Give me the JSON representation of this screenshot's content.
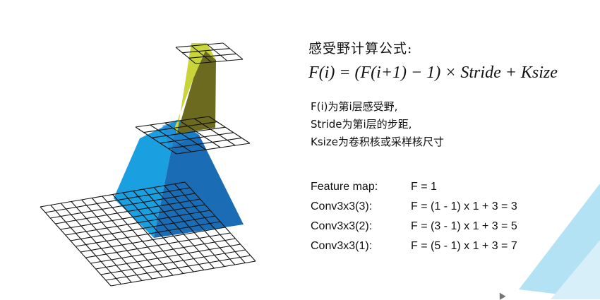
{
  "title": "感受野计算公式:",
  "formula": "F(i) = (F(i+1) − 1) × Stride + Ksize",
  "descriptions": [
    "F(i)为第i层感受野,",
    "Stride为第i层的步距,",
    "Ksize为卷积核或采样核尺寸"
  ],
  "calculations": [
    {
      "label": "Feature map:",
      "expr": "F = 1"
    },
    {
      "label": "Conv3x3(3):",
      "expr": "F = (1 - 1) x 1 + 3 = 3"
    },
    {
      "label": "Conv3x3(2):",
      "expr": "F = (3 - 1) x 1 + 3 = 5"
    },
    {
      "label": "Conv3x3(1):",
      "expr": "F = (5 - 1) x 1 + 3 = 7"
    }
  ],
  "colors": {
    "yellow_light": "#c9d43a",
    "yellow_dark": "#6b6a1f",
    "blue_light": "#1a9fe0",
    "blue_mid": "#1f8ad6",
    "blue_dark": "#1a6db5",
    "grid": "#111111",
    "decor": "#b3e2f5"
  }
}
